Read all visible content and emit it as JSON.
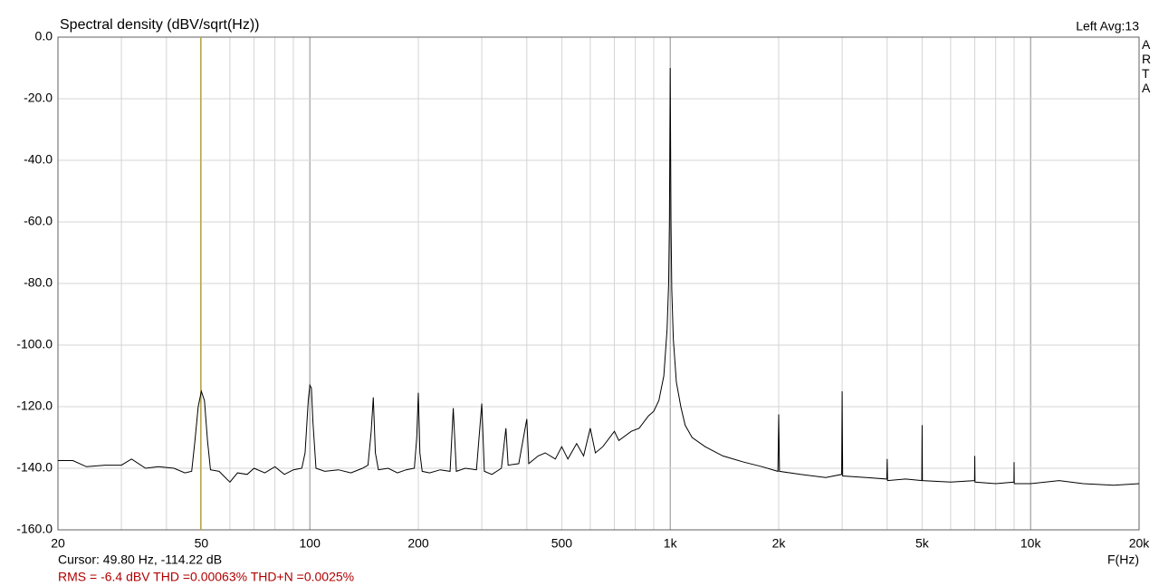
{
  "chart_data": {
    "type": "line",
    "title": "Spectral density (dBV/sqrt(Hz))",
    "channel_info": "Left  Avg:13",
    "brand": "ARTA",
    "x_label": "F(Hz)",
    "x_scale": "log",
    "xlim": [
      20,
      20000
    ],
    "ylim": [
      -160,
      0
    ],
    "xticks": [
      20,
      50,
      100,
      200,
      500,
      {
        "value": 1000,
        "label": "1k"
      },
      {
        "value": 2000,
        "label": "2k"
      },
      {
        "value": 5000,
        "label": "5k"
      },
      {
        "value": 10000,
        "label": "10k"
      },
      {
        "value": 20000,
        "label": "20k"
      }
    ],
    "x_minor_ticks": [
      30,
      40,
      60,
      70,
      80,
      90,
      300,
      400,
      600,
      700,
      800,
      900,
      3000,
      4000,
      6000,
      7000,
      8000,
      9000
    ],
    "yticks": [
      {
        "value": 0,
        "label": "0.0"
      },
      {
        "value": -20,
        "label": "-20.0"
      },
      {
        "value": -40,
        "label": "-40.0"
      },
      {
        "value": -60,
        "label": "-60.0"
      },
      {
        "value": -80,
        "label": "-80.0"
      },
      {
        "value": -100,
        "label": "-100.0"
      },
      {
        "value": -120,
        "label": "-120.0"
      },
      {
        "value": -140,
        "label": "-140.0"
      },
      {
        "value": -160,
        "label": "-160.0"
      }
    ],
    "grid": true,
    "color": "#000000",
    "cursor": {
      "x": 49.8,
      "color": "#b8a850",
      "label": "Cursor: 49.80 Hz, -114.22 dB"
    },
    "measurements": "RMS =   -6.4 dBV  THD =0.00063%  THD+N =0.0025%",
    "x": [
      20,
      22,
      24,
      27,
      30,
      32,
      35,
      38,
      42,
      45,
      47,
      48,
      49,
      50,
      51,
      52,
      53,
      56,
      60,
      63,
      67,
      70,
      75,
      80,
      85,
      90,
      95,
      97,
      99,
      100,
      101,
      102,
      104,
      110,
      120,
      130,
      140,
      145,
      148,
      150,
      152,
      155,
      165,
      175,
      185,
      195,
      198,
      200,
      202,
      205,
      215,
      230,
      245,
      250,
      255,
      270,
      290,
      300,
      305,
      320,
      340,
      350,
      355,
      380,
      400,
      405,
      430,
      450,
      480,
      500,
      520,
      550,
      575,
      600,
      620,
      650,
      700,
      720,
      780,
      820,
      870,
      900,
      930,
      960,
      980,
      990,
      995,
      1000,
      1005,
      1010,
      1020,
      1040,
      1070,
      1100,
      1150,
      1250,
      1400,
      1600,
      1800,
      1990,
      2000,
      2010,
      2300,
      2700,
      2990,
      3000,
      3010,
      3500,
      3990,
      4000,
      4010,
      4500,
      4990,
      5000,
      5010,
      6000,
      6990,
      7000,
      7010,
      8000,
      8990,
      9000,
      9010,
      10000,
      12000,
      14000,
      17000,
      20000
    ],
    "values": [
      -137.5,
      -137.5,
      -139.5,
      -139,
      -139,
      -137,
      -140,
      -139.5,
      -140,
      -141.5,
      -141,
      -131,
      -120,
      -115,
      -118,
      -131,
      -140.5,
      -141,
      -144.5,
      -141.5,
      -142,
      -140,
      -141.5,
      -139.5,
      -142,
      -140.5,
      -140,
      -135,
      -118,
      -113,
      -114,
      -125,
      -140,
      -141,
      -140.5,
      -141.5,
      -140,
      -139,
      -128,
      -117,
      -135,
      -140.5,
      -140,
      -141.5,
      -140.5,
      -140,
      -130,
      -115.5,
      -135,
      -141,
      -141.5,
      -140.5,
      -141,
      -120.5,
      -141,
      -140,
      -140.5,
      -119,
      -141,
      -142,
      -140,
      -127,
      -139,
      -138.5,
      -124,
      -138.5,
      -136,
      -135,
      -137,
      -133,
      -137,
      -132,
      -136,
      -127,
      -135,
      -133,
      -128,
      -131,
      -128,
      -127,
      -123,
      -121.5,
      -118,
      -110,
      -95,
      -80,
      -60,
      -10,
      -60,
      -82,
      -98,
      -112,
      -120,
      -126,
      -130,
      -133,
      -136,
      -138,
      -139.5,
      -141,
      -122.5,
      -141,
      -142,
      -143,
      -142,
      -115,
      -142.5,
      -143,
      -143.5,
      -137,
      -144,
      -143.5,
      -144,
      -126,
      -144,
      -144.5,
      -144,
      -136,
      -144.5,
      -145,
      -144.5,
      -138,
      -145,
      -145,
      -144,
      -145,
      -145.5,
      -145
    ]
  }
}
